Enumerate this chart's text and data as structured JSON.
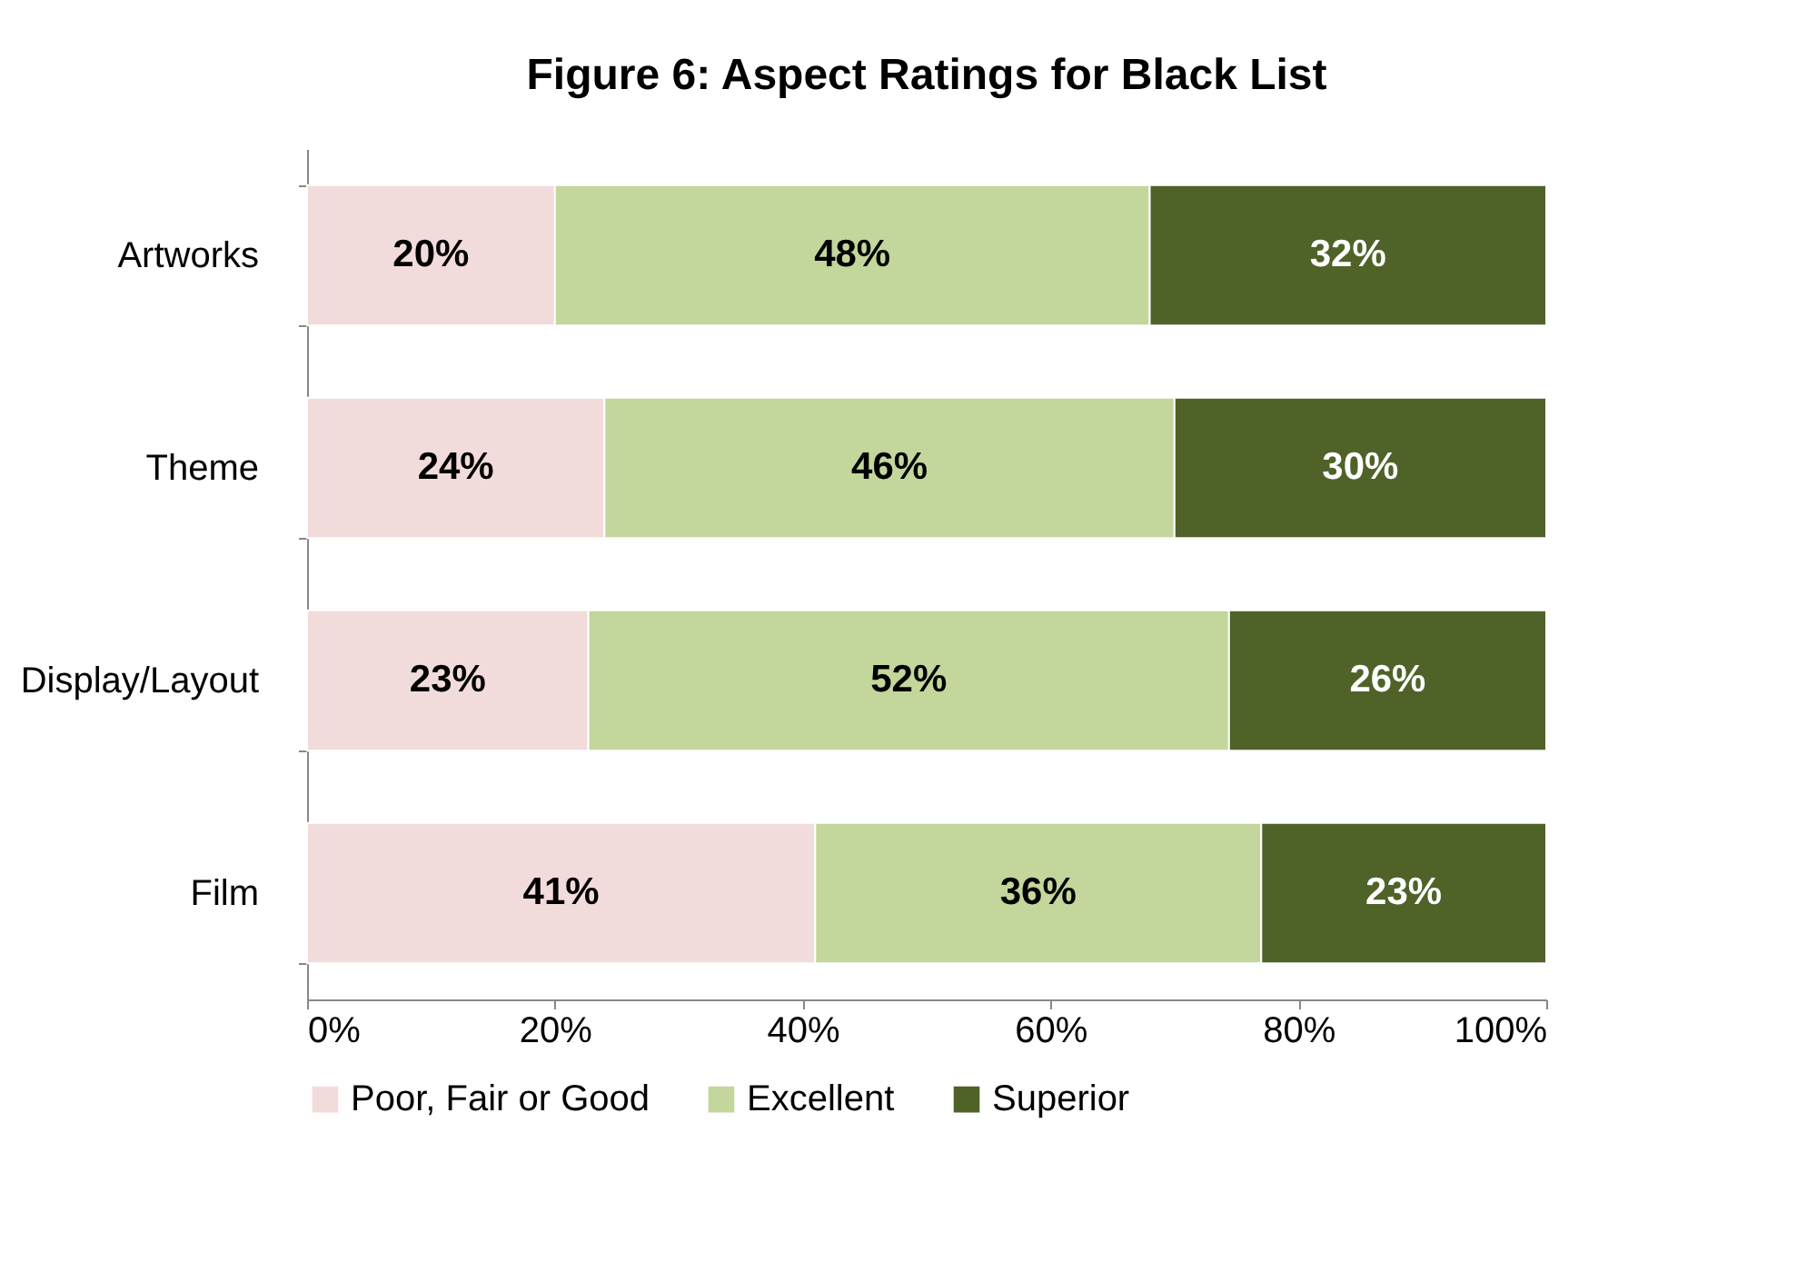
{
  "chart_data": {
    "type": "bar",
    "title": "Figure 6:  Aspect Ratings for Black List",
    "orientation": "horizontal",
    "stacked": true,
    "categories": [
      "Artworks",
      "Theme",
      "Display/Layout",
      "Film"
    ],
    "series": [
      {
        "name": "Poor, Fair or Good",
        "color": "#f2dcdb",
        "values": [
          20,
          24,
          22.7,
          41
        ],
        "value_labels": [
          "20%",
          "24%",
          "23%",
          "41%"
        ]
      },
      {
        "name": "Excellent",
        "color": "#c3d69b",
        "values": [
          48,
          46,
          51.7,
          36
        ],
        "value_labels": [
          "48%",
          "46%",
          "52%",
          "36%"
        ]
      },
      {
        "name": "Superior",
        "color": "#4f6228",
        "values": [
          32,
          30,
          25.6,
          23
        ],
        "value_labels": [
          "32%",
          "30%",
          "26%",
          "23%"
        ]
      }
    ],
    "xlim": [
      0,
      100
    ],
    "xticks": [
      {
        "value": 0,
        "label": "0%"
      },
      {
        "value": 20,
        "label": "20%"
      },
      {
        "value": 40,
        "label": "40%"
      },
      {
        "value": 60,
        "label": "60%"
      },
      {
        "value": 80,
        "label": "80%"
      },
      {
        "value": 100,
        "label": "100%"
      }
    ],
    "grid": false,
    "legend": "bottom"
  }
}
